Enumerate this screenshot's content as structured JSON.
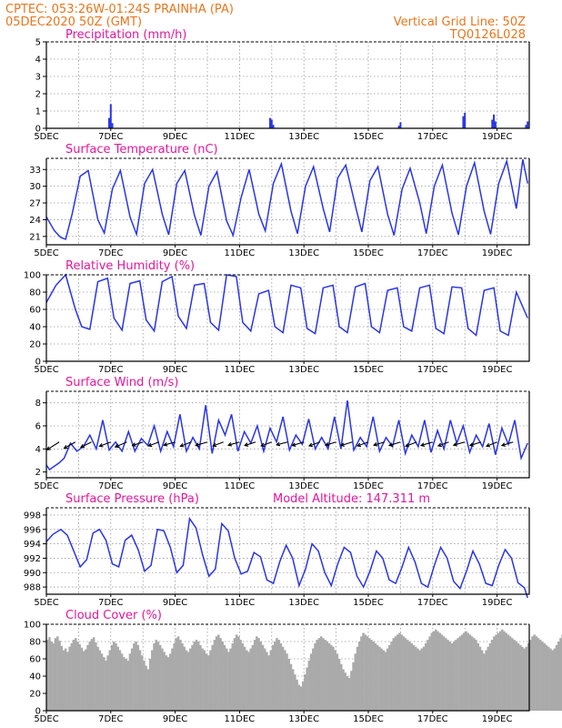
{
  "header": {
    "line1_left": "CPTEC:   053:26W-01:24S   PRAINHA (PA)",
    "line2_left": "05DEC2020 50Z (GMT)",
    "line1_right": "Vertical Grid Line: 50Z",
    "line2_right": "TQ0126L028"
  },
  "colors": {
    "header": "#e8761c",
    "titles": "#e0189a",
    "series": "#2a35e6",
    "cloud": "#aaaaaa",
    "wind_arrow": "#000000"
  },
  "x_axis": {
    "tick_labels": [
      "5DEC",
      "7DEC",
      "9DEC",
      "11DEC",
      "13DEC",
      "15DEC",
      "17DEC",
      "19DEC"
    ],
    "range_days": [
      5,
      20
    ],
    "grid_days": [
      5,
      6,
      7,
      8,
      9,
      10,
      11,
      12,
      13,
      14,
      15,
      16,
      17,
      18,
      19,
      20
    ]
  },
  "panels": {
    "precipitation": {
      "title": "Precipitation (mm/h)"
    },
    "temperature": {
      "title": "Surface Temperature (nC)"
    },
    "humidity": {
      "title": "Relative Humidity (%)"
    },
    "wind": {
      "title": "Surface Wind (m/s)"
    },
    "pressure": {
      "title": "Surface Pressure (hPa)",
      "model_altitude": "Model Altitude: 147.311 m"
    },
    "cloud": {
      "title": "Cloud Cover (%)"
    }
  },
  "chart_data": [
    {
      "type": "bar",
      "title": "Precipitation (mm/h)",
      "ylim": [
        0,
        5
      ],
      "yticks": [
        0,
        1,
        2,
        3,
        4,
        5
      ],
      "x": [
        6.95,
        7.0,
        7.05,
        11.95,
        12.0,
        12.05,
        15.95,
        16.0,
        17.95,
        18.0,
        18.85,
        18.9,
        18.95,
        19.9,
        19.95
      ],
      "values": [
        0.6,
        1.4,
        0.3,
        0.6,
        0.5,
        0.2,
        0.15,
        0.35,
        0.7,
        0.9,
        0.5,
        0.8,
        0.4,
        0.2,
        0.4
      ]
    },
    {
      "type": "line",
      "title": "Surface Temperature (nC)",
      "ylim": [
        19.5,
        35
      ],
      "yticks": [
        21,
        24,
        27,
        30,
        33
      ],
      "x": [
        5.0,
        5.25,
        5.45,
        5.6,
        5.8,
        6.05,
        6.3,
        6.6,
        6.8,
        7.05,
        7.3,
        7.6,
        7.8,
        8.05,
        8.3,
        8.6,
        8.8,
        9.05,
        9.3,
        9.6,
        9.8,
        10.05,
        10.3,
        10.6,
        10.8,
        11.05,
        11.3,
        11.6,
        11.8,
        12.05,
        12.3,
        12.6,
        12.8,
        13.05,
        13.3,
        13.6,
        13.8,
        14.05,
        14.3,
        14.6,
        14.8,
        15.05,
        15.3,
        15.6,
        15.8,
        16.05,
        16.3,
        16.6,
        16.8,
        17.05,
        17.3,
        17.6,
        17.8,
        18.05,
        18.3,
        18.6,
        18.8,
        19.05,
        19.3,
        19.6,
        19.8,
        19.95
      ],
      "values": [
        24.5,
        22.0,
        20.8,
        20.5,
        25.0,
        31.8,
        32.8,
        24.0,
        21.6,
        29.5,
        32.8,
        24.5,
        21.4,
        30.5,
        33.0,
        25.0,
        21.3,
        30.5,
        32.8,
        24.8,
        21.2,
        30.0,
        32.6,
        23.8,
        21.2,
        28.0,
        33.0,
        25.0,
        22.0,
        30.5,
        34.0,
        25.5,
        21.5,
        30.0,
        33.5,
        26.0,
        21.8,
        31.5,
        33.8,
        26.5,
        21.8,
        31.0,
        33.5,
        25.0,
        21.2,
        29.5,
        33.2,
        27.0,
        21.5,
        30.0,
        33.8,
        25.2,
        21.3,
        30.0,
        34.2,
        25.5,
        21.4,
        30.5,
        34.5,
        26.0,
        34.8,
        30.5
      ]
    },
    {
      "type": "line",
      "title": "Relative Humidity (%)",
      "ylim": [
        0,
        100
      ],
      "yticks": [
        0,
        20,
        40,
        60,
        80,
        100
      ],
      "x": [
        5.0,
        5.3,
        5.6,
        5.9,
        6.1,
        6.35,
        6.6,
        6.9,
        7.1,
        7.35,
        7.6,
        7.9,
        8.1,
        8.35,
        8.6,
        8.9,
        9.1,
        9.35,
        9.6,
        9.9,
        10.1,
        10.35,
        10.6,
        10.9,
        11.1,
        11.35,
        11.6,
        11.9,
        12.1,
        12.35,
        12.6,
        12.9,
        13.1,
        13.35,
        13.6,
        13.9,
        14.1,
        14.35,
        14.6,
        14.9,
        15.1,
        15.35,
        15.6,
        15.9,
        16.1,
        16.35,
        16.6,
        16.9,
        17.1,
        17.35,
        17.6,
        17.9,
        18.1,
        18.35,
        18.6,
        18.9,
        19.1,
        19.35,
        19.6,
        19.95
      ],
      "values": [
        68.0,
        88.0,
        100.0,
        60.0,
        40.0,
        37.0,
        92.0,
        96.0,
        50.0,
        36.0,
        90.0,
        93.0,
        48.0,
        35.0,
        92.0,
        98.0,
        52.0,
        38.0,
        88.0,
        90.0,
        45.0,
        36.0,
        100.0,
        98.0,
        45.0,
        35.0,
        78.0,
        82.0,
        40.0,
        33.0,
        88.0,
        85.0,
        38.0,
        32.0,
        85.0,
        88.0,
        40.0,
        33.0,
        86.0,
        90.0,
        40.0,
        33.0,
        82.0,
        85.0,
        40.0,
        35.0,
        85.0,
        88.0,
        38.0,
        32.0,
        86.0,
        85.0,
        38.0,
        30.0,
        82.0,
        85.0,
        35.0,
        30.0,
        80.0,
        50.0
      ]
    },
    {
      "type": "line",
      "title": "Surface Wind (m/s)",
      "ylim": [
        1.5,
        9
      ],
      "yticks": [
        2,
        4,
        6,
        8
      ],
      "x": [
        5.0,
        5.1,
        5.25,
        5.4,
        5.55,
        5.75,
        5.95,
        6.15,
        6.35,
        6.55,
        6.75,
        6.95,
        7.15,
        7.35,
        7.55,
        7.75,
        7.95,
        8.15,
        8.35,
        8.55,
        8.75,
        8.95,
        9.15,
        9.35,
        9.55,
        9.75,
        9.95,
        10.15,
        10.35,
        10.55,
        10.75,
        10.95,
        11.15,
        11.35,
        11.55,
        11.75,
        11.95,
        12.15,
        12.35,
        12.55,
        12.75,
        12.95,
        13.15,
        13.35,
        13.55,
        13.75,
        13.95,
        14.15,
        14.35,
        14.55,
        14.75,
        14.95,
        15.15,
        15.35,
        15.55,
        15.75,
        15.95,
        16.15,
        16.35,
        16.55,
        16.75,
        16.95,
        17.15,
        17.35,
        17.55,
        17.75,
        17.95,
        18.15,
        18.35,
        18.55,
        18.75,
        18.95,
        19.15,
        19.35,
        19.55,
        19.75,
        19.95
      ],
      "values": [
        2.6,
        2.2,
        2.5,
        2.8,
        3.2,
        4.5,
        3.8,
        4.2,
        5.2,
        4.0,
        6.5,
        3.9,
        4.6,
        3.8,
        5.5,
        3.8,
        4.9,
        4.3,
        6.0,
        3.8,
        5.5,
        4.2,
        7.0,
        3.8,
        5.0,
        4.0,
        7.8,
        3.6,
        6.5,
        5.2,
        7.0,
        3.8,
        5.5,
        4.5,
        6.0,
        3.8,
        5.8,
        4.6,
        6.8,
        3.9,
        5.2,
        4.4,
        6.6,
        4.0,
        5.0,
        4.0,
        6.8,
        4.0,
        8.2,
        3.9,
        5.0,
        4.2,
        6.8,
        3.8,
        5.0,
        4.2,
        6.5,
        3.6,
        5.2,
        4.2,
        6.5,
        3.7,
        5.6,
        4.0,
        6.5,
        4.5,
        6.0,
        3.7,
        5.2,
        4.2,
        6.2,
        3.5,
        5.8,
        4.4,
        6.5,
        3.2,
        4.5
      ],
      "arrows": {
        "x": [
          5.4,
          5.9,
          6.4,
          7.0,
          7.5,
          8.0,
          8.5,
          9.0,
          9.5,
          10.0,
          10.5,
          11.0,
          11.5,
          12.0,
          12.5,
          13.0,
          13.5,
          14.0,
          14.5,
          15.0,
          15.5,
          16.0,
          16.5,
          17.0,
          17.5,
          18.0,
          18.5,
          19.0,
          19.5
        ],
        "u": [
          -3.5,
          -3.2,
          -3.0,
          -3.2,
          -3.3,
          -3.0,
          -3.0,
          -3.2,
          -3.1,
          -3.3,
          -3.0,
          -3.2,
          -3.1,
          -3.0,
          -3.2,
          -3.3,
          -3.1,
          -3.0,
          -3.2,
          -3.1,
          -3.0,
          -3.2,
          -3.1,
          -3.3,
          -3.0,
          -3.2,
          -3.1,
          -3.0,
          -3.2
        ],
        "v": [
          -2.2,
          -1.8,
          -1.5,
          -1.2,
          -1.4,
          -1.0,
          -1.1,
          -0.9,
          -1.2,
          -1.0,
          -1.1,
          -0.9,
          -1.0,
          -1.1,
          -0.8,
          -1.0,
          -1.1,
          -0.9,
          -1.0,
          -1.1,
          -0.9,
          -1.0,
          -1.2,
          -1.0,
          -1.1,
          -0.9,
          -1.0,
          -1.2,
          -1.0
        ]
      }
    },
    {
      "type": "line",
      "title": "Surface Pressure (hPa)",
      "ylim": [
        987,
        999
      ],
      "yticks": [
        988,
        990,
        992,
        994,
        996,
        998
      ],
      "x": [
        5.0,
        5.2,
        5.45,
        5.65,
        5.85,
        6.05,
        6.25,
        6.45,
        6.65,
        6.85,
        7.05,
        7.25,
        7.45,
        7.65,
        7.85,
        8.05,
        8.25,
        8.45,
        8.65,
        8.85,
        9.05,
        9.25,
        9.45,
        9.65,
        9.85,
        10.05,
        10.25,
        10.45,
        10.65,
        10.85,
        11.05,
        11.25,
        11.45,
        11.65,
        11.85,
        12.05,
        12.25,
        12.45,
        12.65,
        12.85,
        13.05,
        13.25,
        13.45,
        13.65,
        13.85,
        14.05,
        14.25,
        14.45,
        14.65,
        14.85,
        15.05,
        15.25,
        15.45,
        15.65,
        15.85,
        16.05,
        16.25,
        16.45,
        16.65,
        16.85,
        17.05,
        17.25,
        17.45,
        17.65,
        17.85,
        18.05,
        18.25,
        18.45,
        18.65,
        18.85,
        19.05,
        19.25,
        19.45,
        19.65,
        19.85,
        19.95
      ],
      "values": [
        994.3,
        995.3,
        996.0,
        995.2,
        993.0,
        990.8,
        991.8,
        995.5,
        996.0,
        994.5,
        991.2,
        990.8,
        994.5,
        995.2,
        993.2,
        990.2,
        991.0,
        996.0,
        995.8,
        993.5,
        990.0,
        991.0,
        997.5,
        996.2,
        992.5,
        989.5,
        990.5,
        996.8,
        995.8,
        992.0,
        989.8,
        990.2,
        992.8,
        992.2,
        989.0,
        988.5,
        991.5,
        993.8,
        992.0,
        988.2,
        990.5,
        994.0,
        993.0,
        990.0,
        988.2,
        991.2,
        993.5,
        992.8,
        989.5,
        988.0,
        990.2,
        993.0,
        992.0,
        989.0,
        988.5,
        990.8,
        993.5,
        991.5,
        988.5,
        988.0,
        991.0,
        993.5,
        992.0,
        988.8,
        987.8,
        990.2,
        993.0,
        991.2,
        988.5,
        988.2,
        991.0,
        993.2,
        992.0,
        988.6,
        987.9,
        986.5
      ]
    },
    {
      "type": "bar",
      "title": "Cloud Cover (%)",
      "ylim": [
        0,
        100
      ],
      "yticks": [
        0,
        20,
        40,
        60,
        80,
        100
      ],
      "bin_start": 5.0,
      "bin_width_days": 0.0625,
      "values": [
        82,
        85,
        80,
        78,
        84,
        86,
        81,
        75,
        70,
        72,
        68,
        74,
        78,
        82,
        84,
        80,
        77,
        73,
        69,
        71,
        76,
        80,
        83,
        85,
        79,
        74,
        70,
        66,
        62,
        58,
        64,
        70,
        76,
        80,
        78,
        74,
        70,
        66,
        62,
        60,
        58,
        66,
        72,
        78,
        80,
        76,
        70,
        64,
        58,
        52,
        48,
        60,
        70,
        78,
        82,
        80,
        76,
        72,
        68,
        64,
        62,
        66,
        72,
        78,
        84,
        86,
        82,
        78,
        74,
        70,
        68,
        72,
        76,
        80,
        82,
        80,
        76,
        72,
        70,
        66,
        64,
        70,
        76,
        82,
        86,
        88,
        84,
        80,
        76,
        72,
        68,
        72,
        78,
        84,
        88,
        86,
        82,
        78,
        74,
        70,
        68,
        72,
        76,
        82,
        86,
        84,
        80,
        76,
        72,
        68,
        64,
        70,
        76,
        80,
        84,
        82,
        78,
        74,
        70,
        66,
        60,
        54,
        48,
        42,
        36,
        30,
        28,
        34,
        42,
        50,
        58,
        66,
        72,
        78,
        82,
        84,
        86,
        84,
        82,
        80,
        78,
        76,
        74,
        70,
        66,
        60,
        54,
        48,
        44,
        40,
        38,
        46,
        56,
        66,
        74,
        80,
        86,
        90,
        88,
        86,
        84,
        82,
        80,
        78,
        76,
        74,
        72,
        70,
        68,
        72,
        76,
        80,
        84,
        86,
        88,
        90,
        88,
        86,
        84,
        82,
        80,
        78,
        76,
        74,
        72,
        70,
        72,
        74,
        78,
        82,
        86,
        90,
        92,
        94,
        92,
        90,
        88,
        86,
        84,
        82,
        80,
        78,
        80,
        82,
        84,
        86,
        88,
        90,
        92,
        90,
        88,
        86,
        84,
        82,
        78,
        74,
        70,
        66,
        70,
        74,
        78,
        82,
        86,
        88,
        90,
        92,
        94,
        92,
        90,
        88,
        86,
        84,
        82,
        80,
        78,
        76,
        74,
        72,
        74,
        78,
        82,
        86,
        88,
        86,
        84,
        82,
        80,
        78,
        76,
        74,
        72,
        70,
        72,
        76,
        80,
        84,
        88,
        90
      ]
    }
  ]
}
